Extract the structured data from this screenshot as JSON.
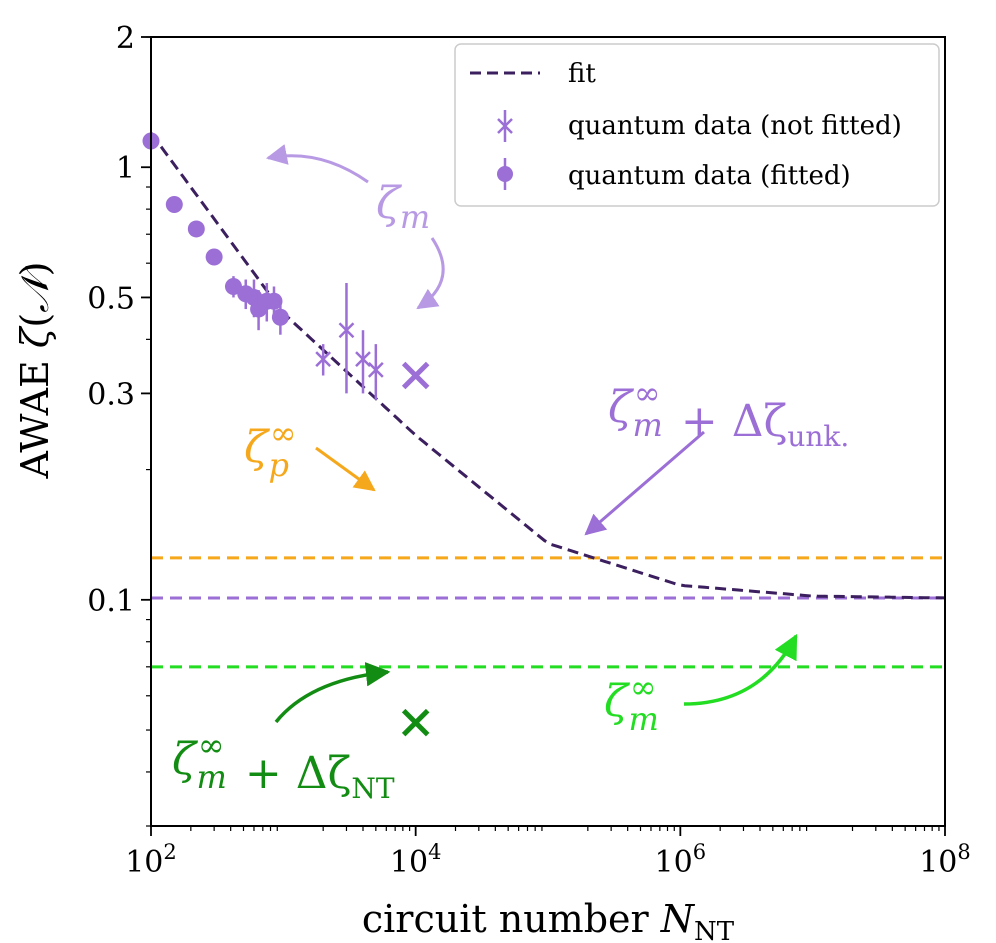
{
  "chart_data": {
    "type": "scatter",
    "title": "",
    "xlabel": "circuit number N_NT",
    "ylabel": "AWAE ζ(𝒩)",
    "xscale": "log",
    "yscale": "log",
    "xlim": [
      100,
      100000000
    ],
    "ylim": [
      0.03,
      2
    ],
    "x_ticks": [
      {
        "value": 100,
        "base": "10",
        "exp": "2"
      },
      {
        "value": 10000,
        "base": "10",
        "exp": "4"
      },
      {
        "value": 1000000,
        "base": "10",
        "exp": "6"
      },
      {
        "value": 100000000,
        "base": "10",
        "exp": "8"
      }
    ],
    "y_ticks": [
      {
        "value": 2,
        "label": "2"
      },
      {
        "value": 1,
        "label": "1"
      },
      {
        "value": 0.5,
        "label": "0.5"
      },
      {
        "value": 0.3,
        "label": "0.3"
      },
      {
        "value": 0.1,
        "label": "0.1"
      }
    ],
    "grid": false,
    "legend_position": "top-right",
    "legend": [
      {
        "label": "fit",
        "marker": "dashed-line"
      },
      {
        "label": "quantum data (not fitted)",
        "marker": "x-errorbar"
      },
      {
        "label": "quantum data (fitted)",
        "marker": "dot-errorbar"
      }
    ],
    "fit": {
      "name": "fit",
      "color": "#3b1f5e",
      "asymptote": 0.1,
      "points": [
        [
          100,
          1.2
        ],
        [
          1000,
          0.46
        ],
        [
          10000,
          0.24
        ],
        [
          100000,
          0.135
        ],
        [
          1000000,
          0.108
        ],
        [
          10000000,
          0.102
        ],
        [
          100000000,
          0.101
        ]
      ]
    },
    "series": [
      {
        "name": "quantum data (fitted)",
        "marker": "dot",
        "color": "#9b6fd6",
        "points": [
          {
            "x": 100,
            "y": 1.15,
            "err": 0
          },
          {
            "x": 150,
            "y": 0.82,
            "err": 0
          },
          {
            "x": 220,
            "y": 0.72,
            "err": 0
          },
          {
            "x": 300,
            "y": 0.62,
            "err": 0
          },
          {
            "x": 420,
            "y": 0.53,
            "err": 0.03
          },
          {
            "x": 520,
            "y": 0.51,
            "err": 0.04
          },
          {
            "x": 600,
            "y": 0.5,
            "err": 0.05
          },
          {
            "x": 650,
            "y": 0.47,
            "err": 0.05
          },
          {
            "x": 750,
            "y": 0.49,
            "err": 0.05
          },
          {
            "x": 850,
            "y": 0.49,
            "err": 0.04
          },
          {
            "x": 950,
            "y": 0.45,
            "err": 0.04
          }
        ]
      },
      {
        "name": "quantum data (not fitted)",
        "marker": "x",
        "color": "#9b6fd6",
        "points": [
          {
            "x": 2000,
            "y": 0.36,
            "err": 0.03
          },
          {
            "x": 3000,
            "y": 0.42,
            "err": 0.12
          },
          {
            "x": 4000,
            "y": 0.36,
            "err": 0.06
          },
          {
            "x": 5000,
            "y": 0.34,
            "err": 0.05
          }
        ]
      }
    ],
    "hlines": [
      {
        "y": 0.125,
        "color": "#f5a81c",
        "style": "dashed"
      },
      {
        "y": 0.101,
        "color": "#9b6fd6",
        "style": "dashed"
      },
      {
        "y": 0.07,
        "color": "#22dd22",
        "style": "dashed"
      }
    ],
    "markers": [
      {
        "x": 10000,
        "y": 0.33,
        "color": "#9b6fd6",
        "shape": "x"
      },
      {
        "x": 10000,
        "y": 0.052,
        "color": "#138c13",
        "shape": "x"
      }
    ],
    "annotations": [
      {
        "id": "zeta-m",
        "base": "ζ",
        "sub": "m",
        "sup": "",
        "suffix": "",
        "suffix_sub": "",
        "color": "#b89ae4"
      },
      {
        "id": "zeta-p-inf",
        "base": "ζ",
        "sub": "p",
        "sup": "∞",
        "suffix": "",
        "suffix_sub": "",
        "color": "#f5a81c"
      },
      {
        "id": "zeta-unk",
        "base": "ζ",
        "sub": "m",
        "sup": "∞",
        "suffix": " + Δζ",
        "suffix_sub": "unk.",
        "color": "#9b6fd6"
      },
      {
        "id": "zeta-nt",
        "base": "ζ",
        "sub": "m",
        "sup": "∞",
        "suffix": " + Δζ",
        "suffix_sub": "NT",
        "color": "#138c13"
      },
      {
        "id": "zeta-m-inf",
        "base": "ζ",
        "sub": "m",
        "sup": "∞",
        "suffix": "",
        "suffix_sub": "",
        "color": "#22dd22"
      }
    ]
  }
}
